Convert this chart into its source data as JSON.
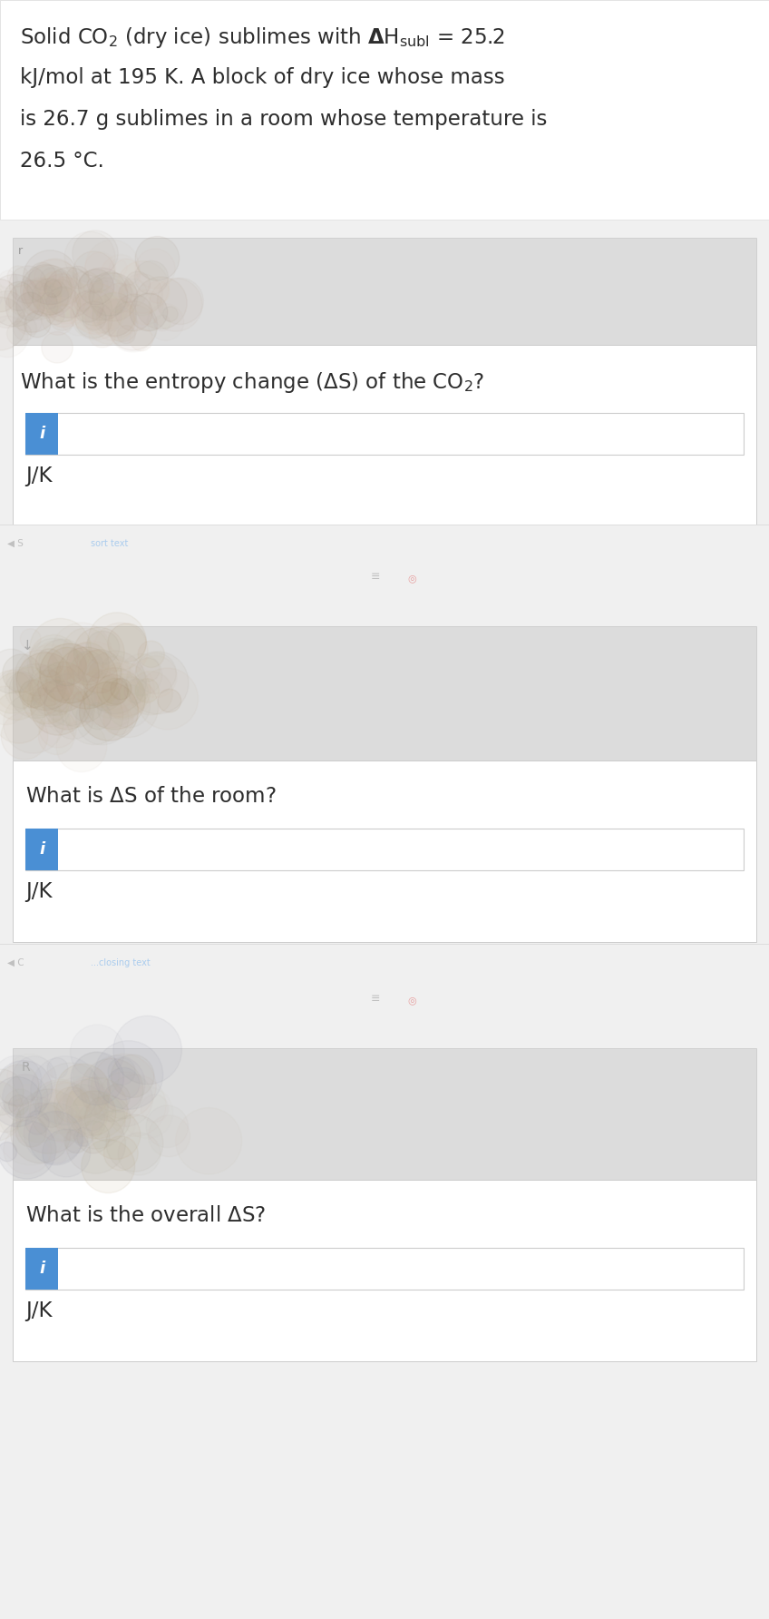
{
  "bg_color": "#f0f0f0",
  "white": "#ffffff",
  "light_gray_card": "#ebebeb",
  "blue_btn": "#4a8fd4",
  "text_dark": "#2d2d2d",
  "border_color": "#cccccc",
  "q1_text": "What is the entropy change (ΔS) of the CO₂?",
  "q2_text": "What is ΔS of the room?",
  "q3_text": "What is the overall ΔS?",
  "unit_label": "J/K",
  "fig_width": 8.48,
  "fig_height": 17.84,
  "dpi": 100
}
